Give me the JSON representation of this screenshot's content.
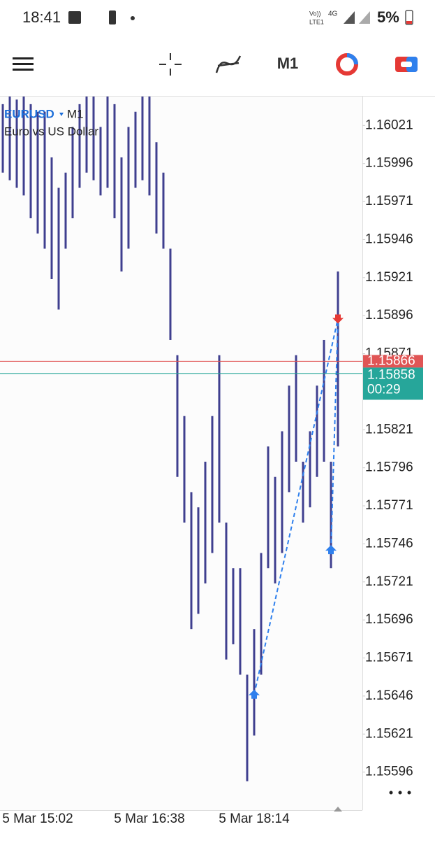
{
  "status_bar": {
    "time": "18:41",
    "network_voice": "Vo))",
    "network_lte": "LTE1",
    "network_gen": "4G",
    "battery": "5%"
  },
  "toolbar": {
    "timeframe": "M1"
  },
  "chart_data": {
    "type": "ohlc-bar",
    "symbol": "EURUSD",
    "timeframe": "M1",
    "description": "Euro vs US Dollar",
    "color": "#3f3f8f",
    "categories": [
      null,
      null,
      null,
      null,
      null,
      "5 Mar 15:02",
      null,
      null,
      null,
      null,
      null,
      null,
      null,
      null,
      null,
      null,
      null,
      null,
      null,
      null,
      null,
      "5 Mar 16:38",
      null,
      null,
      null,
      null,
      null,
      null,
      null,
      null,
      null,
      null,
      null,
      null,
      null,
      null,
      "5 Mar 18:14",
      null,
      null,
      null,
      null,
      null,
      null,
      null,
      null,
      null,
      null,
      null,
      null
    ],
    "high": [
      1.16035,
      1.1604,
      1.16038,
      1.1604,
      1.16035,
      1.1603,
      1.1603,
      1.16,
      1.1598,
      1.1599,
      1.1602,
      1.16035,
      1.1604,
      1.1604,
      1.1602,
      1.1604,
      1.16035,
      1.16,
      1.1602,
      1.1603,
      1.1604,
      1.1604,
      1.1601,
      1.1599,
      1.1594,
      1.1587,
      1.1583,
      1.1578,
      1.1577,
      1.158,
      1.1583,
      1.1587,
      1.1576,
      1.1573,
      1.1573,
      1.1566,
      1.1569,
      1.1574,
      1.1581,
      1.1579,
      1.1582,
      1.1585,
      1.1587,
      1.158,
      1.1582,
      1.1585,
      1.1588,
      1.158,
      1.15925
    ],
    "low": [
      1.1599,
      1.15985,
      1.1598,
      1.15975,
      1.1596,
      1.1595,
      1.1594,
      1.1592,
      1.159,
      1.1594,
      1.1596,
      1.1598,
      1.1599,
      1.15985,
      1.15975,
      1.1598,
      1.1596,
      1.15925,
      1.1594,
      1.1598,
      1.15985,
      1.15975,
      1.1595,
      1.1594,
      1.1588,
      1.1579,
      1.1576,
      1.1569,
      1.157,
      1.1572,
      1.1574,
      1.1576,
      1.1567,
      1.1568,
      1.1566,
      1.1559,
      1.1562,
      1.1566,
      1.1573,
      1.1572,
      1.1574,
      1.1578,
      1.158,
      1.1576,
      1.1577,
      1.1579,
      1.158,
      1.1573,
      1.1581
    ],
    "ask": {
      "value": 1.15866,
      "color": "#e05555"
    },
    "bid": {
      "value": 1.15858,
      "color": "#26a69a"
    },
    "countdown": "00:29",
    "trades": [
      {
        "side": "buy",
        "index": 36,
        "price": 1.15647,
        "color": "#2f80ed"
      },
      {
        "side": "buy",
        "index": 47,
        "price": 1.15742,
        "color": "#2f80ed"
      },
      {
        "side": "sell",
        "index": 48,
        "price": 1.15894,
        "color": "#e53935"
      }
    ],
    "ylim": [
      1.15571,
      1.1604
    ],
    "yticks": [
      1.16021,
      1.15996,
      1.15971,
      1.15946,
      1.15921,
      1.15896,
      1.15871,
      1.15821,
      1.15796,
      1.15771,
      1.15746,
      1.15721,
      1.15696,
      1.15671,
      1.15646,
      1.15621,
      1.15596
    ]
  }
}
